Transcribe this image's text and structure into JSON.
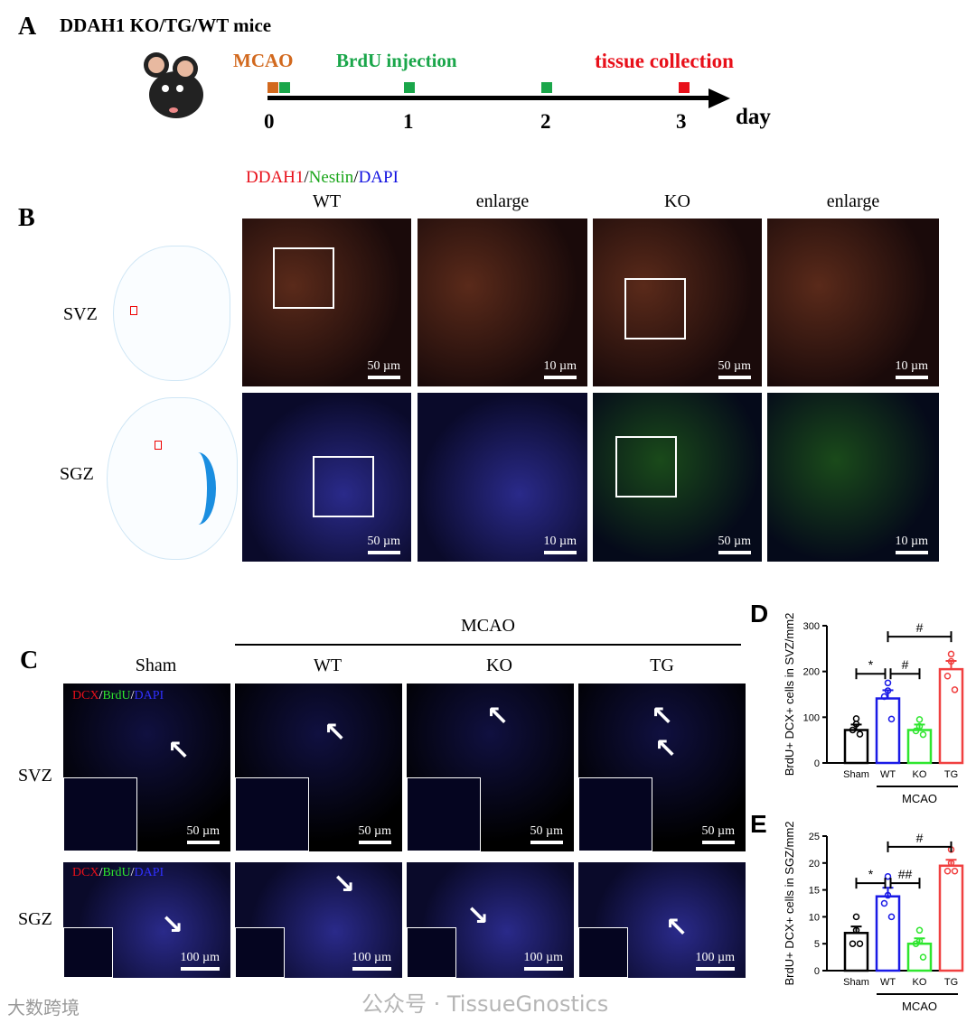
{
  "panel_a": {
    "label": "A",
    "title": "DDAH1 KO/TG/WT mice",
    "events": {
      "mcao": "MCAO",
      "brdu": "BrdU injection",
      "tissue": "tissue collection"
    },
    "ticks": [
      "0",
      "1",
      "2",
      "3"
    ],
    "axis_label": "day",
    "colors": {
      "mcao": "#d2691e",
      "brdu": "#1aa64a",
      "tissue": "#e8101a"
    }
  },
  "panel_b": {
    "label": "B",
    "stain": {
      "a": "DDAH1",
      "sep1": "/",
      "b": "Nestin",
      "sep2": "/",
      "c": "DAPI"
    },
    "columns": [
      "WT",
      "enlarge",
      "KO",
      "enlarge"
    ],
    "rows": [
      "SVZ",
      "SGZ"
    ],
    "scales": [
      "50 µm",
      "10 µm",
      "50 µm",
      "10 µm"
    ]
  },
  "panel_c": {
    "label": "C",
    "group": "MCAO",
    "columns": [
      "Sham",
      "WT",
      "KO",
      "TG"
    ],
    "rows": [
      "SVZ",
      "SGZ"
    ],
    "stain": {
      "a": "DCX",
      "sep1": "/",
      "b": "BrdU",
      "sep2": "/",
      "c": "DAPI"
    },
    "scale_svz": "50 µm",
    "scale_sgz": "100 µm"
  },
  "watermark": {
    "left": "大数跨境",
    "right": "公众号 · TissueGnostics"
  },
  "chart_data": [
    {
      "label": "D",
      "type": "bar",
      "categories": [
        "Sham",
        "WT",
        "KO",
        "TG"
      ],
      "values": [
        72,
        141,
        72,
        205
      ],
      "sem": [
        12,
        18,
        12,
        18
      ],
      "points": [
        [
          97,
          85,
          72,
          63
        ],
        [
          175,
          158,
          145,
          96
        ],
        [
          95,
          80,
          70,
          62
        ],
        [
          238,
          222,
          190,
          160
        ]
      ],
      "colors": [
        "#000000",
        "#1a1ae6",
        "#2ee62e",
        "#f04040"
      ],
      "ylabel": "BrdU+ DCX+ cells in SVZ/mm2",
      "ylim": [
        0,
        300
      ],
      "yticks": [
        "0",
        "100",
        "200",
        "300"
      ],
      "group_label": "MCAO",
      "sig": [
        {
          "from": 0,
          "to": 1,
          "mark": "*"
        },
        {
          "from": 1,
          "to": 2,
          "mark": "#"
        },
        {
          "from": 1,
          "to": 3,
          "mark": "#"
        }
      ]
    },
    {
      "label": "E",
      "type": "bar",
      "categories": [
        "Sham",
        "WT",
        "KO",
        "TG"
      ],
      "values": [
        7,
        13.8,
        5,
        19.5
      ],
      "sem": [
        1.2,
        1.6,
        1,
        1.1
      ],
      "points": [
        [
          10,
          7.5,
          5,
          5
        ],
        [
          17.5,
          14,
          12.5,
          10
        ],
        [
          7.5,
          5.5,
          5,
          2.5
        ],
        [
          22.5,
          20,
          18.5,
          18.5
        ]
      ],
      "colors": [
        "#000000",
        "#1a1ae6",
        "#2ee62e",
        "#f04040"
      ],
      "ylabel": "BrdU+ DCX+ cells in SGZ/mm2",
      "ylim": [
        0,
        25
      ],
      "yticks": [
        "0",
        "5",
        "10",
        "15",
        "20",
        "25"
      ],
      "group_label": "MCAO",
      "sig": [
        {
          "from": 0,
          "to": 1,
          "mark": "*"
        },
        {
          "from": 1,
          "to": 2,
          "mark": "##"
        },
        {
          "from": 1,
          "to": 3,
          "mark": "#"
        }
      ]
    }
  ]
}
